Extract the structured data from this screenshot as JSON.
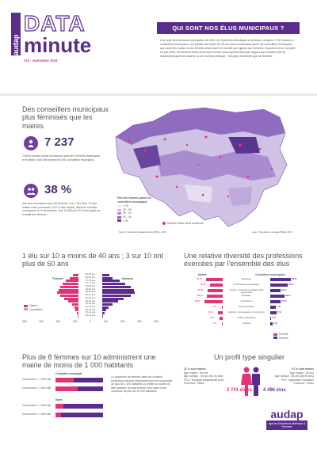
{
  "header": {
    "brand": "audap",
    "title_line1": "DATA",
    "title_line2": "minute",
    "issue": "#10 - septembre 2019",
    "question": "QUI SONT NOS ÉLUS MUNICIPAUX ?",
    "intro": "À la veille des élections municipales de 2020, les Pyrénées-Atlantiques et le Béarn comptent 7 237 maires et conseillers municipaux. Les parités des moins de 40 ans sont nombreuses parmi les conseillers municipaux que parmi les maires où les femmes élues sont en minorité par rapport aux hommes. Depuis la loi sur la parité de juin 2000, les femmes élues demeurent encore sous-représentées par rapport aux hommes (38 %), notamment parmi les maires où l'on recense presque 7 fois plus d'hommes que de femmes."
  },
  "section1": {
    "title": "Des conseillers municipaux plus féminisés que les maires",
    "stat1_value": "7 237",
    "stat1_text": "C'est le nombre d'élus municipaux dans les Pyrénées-Atlantiques et le Béarn, dont 546 maires et 6 691 conseillers municipaux.",
    "stat2_value": "38 %",
    "stat2_text": "des élus municipaux sont des femmes. Sur 2 161 élus, 73 sont maires d'une commune (13,5 % des maires), dans les conseils municipaux 40 % de femmes. Soit 13 448 soit 20 % des sujets au mandat des femmes.",
    "map_legend_title": "Part des femmes parmi les conseillers municipaux",
    "map_legend_items": [
      "< 25",
      "25 - 35",
      "35 - 40",
      "40 - 45",
      "> 45"
    ],
    "map_legend_note": "Nombre d'élus de la commune",
    "map_source": "Source : Répertoire National des Élus (RNE) - 2019",
    "map_caption": "Lagor - Population municipale INSEE, 2016"
  },
  "section2": {
    "title": "1 élu sur 10 a moins de 40 ans ; 3 sur 10 ont plus de 60 ans",
    "label_left": "Femmes",
    "label_right": "Hommes",
    "age_groups": [
      "85-89 ans",
      "80-84 ans",
      "75-79 ans",
      "70-74 ans",
      "65-69 ans",
      "60-64 ans",
      "55-59 ans",
      "50-54 ans",
      "45-49 ans",
      "40-44 ans",
      "35-39 ans",
      "30-34 ans",
      "25-29 ans",
      "20-24 ans",
      "18-19 ans"
    ],
    "axis": [
      "400",
      "300",
      "200",
      "100",
      "0",
      "100",
      "200",
      "300",
      "400"
    ],
    "legend": [
      "Maires",
      "Conseillers"
    ]
  },
  "section3": {
    "title": "Une relative diversité des professions exercées par l'ensemble des élus",
    "col_left": "Maires",
    "col_right": "Conseillers municipaux",
    "categories": [
      "Employés",
      "Professions intermédiaires",
      "Cadres / professions intellectuelles supérieures",
      "Retraités",
      "Agriculteurs",
      "Sans profession",
      "Artisans / commerçants / chefs d'entr.",
      "Autres professions",
      "Ouvriers"
    ],
    "left_values": [
      "21 %",
      "16 %",
      "19 %",
      "20 %",
      "23 %",
      "1 %",
      "6 %",
      "4 %",
      "1 %"
    ],
    "right_values": [
      "26 %",
      "22 %",
      "13 %",
      "18 %",
      "13 %",
      "7 %",
      "8 %",
      "1 %",
      "3 %"
    ],
    "legend": [
      "Femme",
      "Homme"
    ]
  },
  "section4": {
    "title": "Plus de 8 femmes sur 10 administrent une mairie de moins de 1 000 habitants",
    "block1_title": "Conseiller municipal",
    "block2_title": "Maire",
    "rows": [
      "Communes < 1 000 hab.",
      "Communes > 1 000 hab."
    ],
    "text": "La proportion de femmes dans les conseils municipaux est plus importante pour les communes de plus de 1 000 habitants où existe un scrutin de liste paritaire. Aucune femme n'est maire d'une commune de plus de 10 000 habitants."
  },
  "section5": {
    "title": "Un profil type singulier",
    "left_title": "2 741 élues",
    "right_title": "4 496 élus",
    "left_lines": [
      "21 % sont maires",
      "Âge moyen : 58 ans",
      "Âge médian : 54 ans (50-54 ans)",
      "PCS : Employé administratif privé",
      "Présence : Maire"
    ],
    "right_lines": [
      "21 % sont maires",
      "Âge moyen : 56 ans",
      "Âge médian : 56 ans (55-59 ans)",
      "PCS : Agriculteur exploitant",
      "Présence : Maire"
    ]
  },
  "footer": {
    "brand": "audap",
    "tagline": "agence d'urbanisme Atlantique & Pyrénées"
  },
  "colors": {
    "purple": "#5a2d8c",
    "pink": "#e0337a",
    "light_purple": "#b79fd4"
  }
}
